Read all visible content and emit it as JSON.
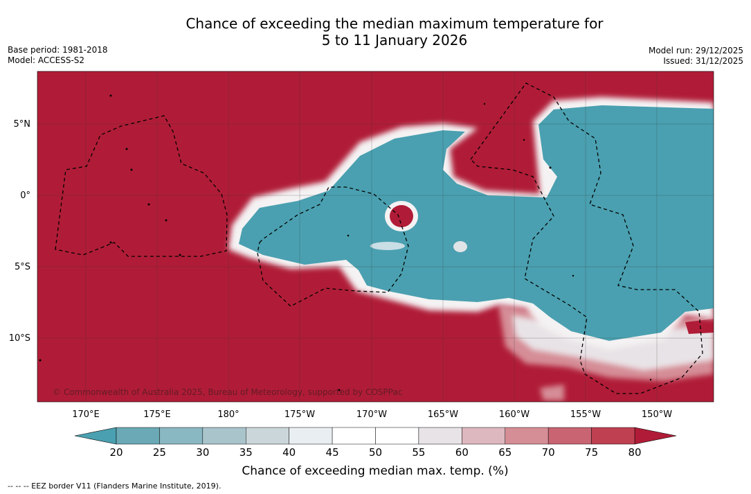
{
  "title": {
    "line1": "Chance of exceeding the median maximum temperature for",
    "line2": "5 to 11 January 2026"
  },
  "meta": {
    "base_period": "Base period: 1981-2018",
    "model": "Model: ACCESS-S2",
    "model_run": "Model run: 29/12/2025",
    "issued": "Issued: 31/12/2025"
  },
  "map": {
    "lat_labels": [
      "5°N",
      "0°",
      "5°S",
      "10°S"
    ],
    "lon_labels": [
      "170°E",
      "175°E",
      "180°",
      "175°W",
      "170°W",
      "165°W",
      "160°W",
      "155°W",
      "150°W"
    ],
    "copyright": "© Commonwealth of Australia 2025, Bureau of Meteorology, supported by COSPPac"
  },
  "colorbar": {
    "title": "Chance of exceeding median max. temp. (%)",
    "ticks": [
      "20",
      "25",
      "30",
      "35",
      "40",
      "45",
      "50",
      "55",
      "60",
      "65",
      "70",
      "75",
      "80"
    ],
    "colors": [
      "#4aa0b0",
      "#6aa9b5",
      "#89b7c2",
      "#a9c5cb",
      "#cad6da",
      "#e9eef2",
      "#ffffff",
      "#ffffff",
      "#e8e3e6",
      "#ddb8be",
      "#d58d96",
      "#c96472",
      "#bf4051",
      "#b01c37"
    ],
    "below_color": "#4aa0b0",
    "above_color": "#b01c37"
  },
  "legend": {
    "eez": "-- -- -- EEZ border V11 (Flanders Marine Institute, 2019)."
  }
}
